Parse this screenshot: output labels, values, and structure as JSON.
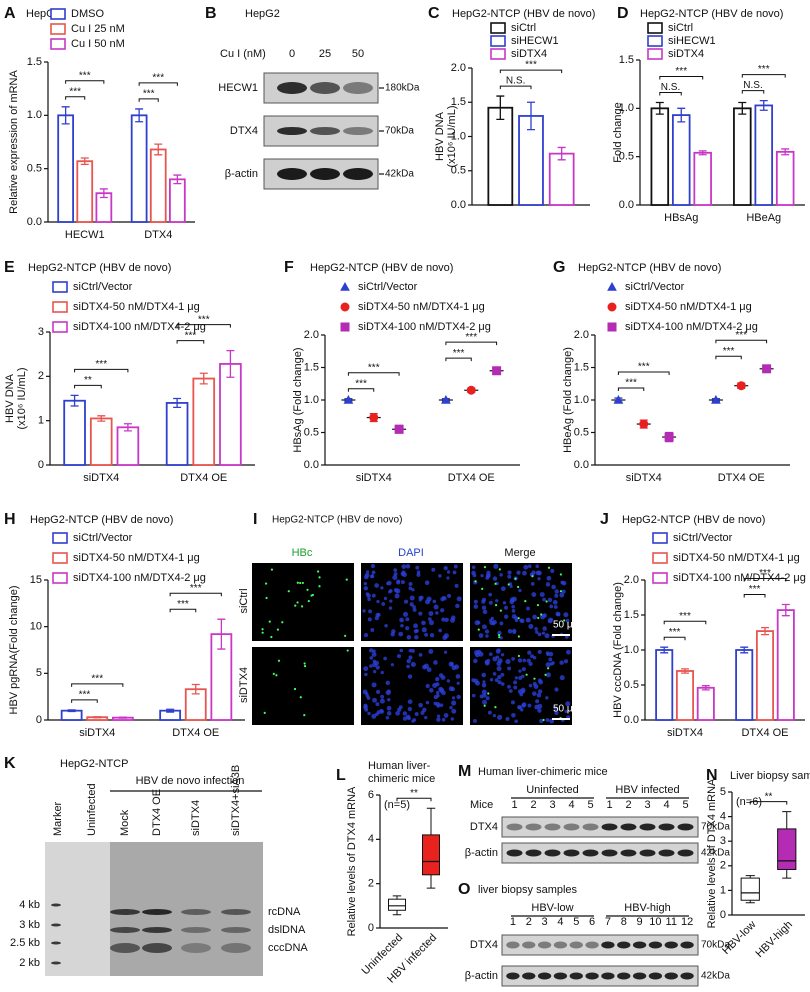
{
  "chart_data": [
    {
      "panel": "A",
      "type": "bar",
      "title": "HepG2",
      "ylabel": "Relative expression of mRNA",
      "categories": [
        "HECW1",
        "DTX4"
      ],
      "series": [
        {
          "name": "DMSO",
          "color": "#2f3fce",
          "values": [
            1.0,
            1.0
          ],
          "errors": [
            0.08,
            0.06
          ]
        },
        {
          "name": "Cu I 25 nM",
          "color": "#e8544f",
          "values": [
            0.57,
            0.68
          ],
          "errors": [
            0.03,
            0.05
          ]
        },
        {
          "name": "Cu I 50 nM",
          "color": "#c837c8",
          "values": [
            0.27,
            0.4
          ],
          "errors": [
            0.04,
            0.04
          ]
        }
      ],
      "ylim": [
        0,
        1.5
      ],
      "yticks": [
        {
          "value": 0,
          "label": "0.0"
        },
        {
          "value": 0.5,
          "label": "0.5"
        },
        {
          "value": 1,
          "label": "1.0"
        },
        {
          "value": 1.5,
          "label": "1.5"
        }
      ],
      "annotations": [
        "***",
        "***",
        "***",
        "***"
      ]
    },
    {
      "panel": "C",
      "type": "bar",
      "title": "HepG2-NTCP (HBV de novo)",
      "ylabel": [
        "HBV DNA",
        "(x10⁶ IU/mL)"
      ],
      "categories": [
        null
      ],
      "series": [
        {
          "name": "siCtrl",
          "color": "#111111",
          "values": [
            1.42
          ],
          "errors": [
            0.17
          ]
        },
        {
          "name": "siHECW1",
          "color": "#2f3fce",
          "values": [
            1.3
          ],
          "errors": [
            0.2
          ]
        },
        {
          "name": "siDTX4",
          "color": "#c837c8",
          "values": [
            0.75
          ],
          "errors": [
            0.09
          ]
        }
      ],
      "ylim": [
        0,
        2
      ],
      "yticks": [
        {
          "value": 0,
          "label": "0.0"
        },
        {
          "value": 0.5,
          "label": "0.5"
        },
        {
          "value": 1,
          "label": "1.0"
        },
        {
          "value": 1.5,
          "label": "1.5"
        },
        {
          "value": 2,
          "label": "2.0"
        }
      ],
      "annotations": [
        "N.S.",
        "***"
      ]
    },
    {
      "panel": "D",
      "type": "bar",
      "title": "HepG2-NTCP (HBV de novo)",
      "ylabel": "Fold change",
      "categories": [
        "HBsAg",
        "HBeAg"
      ],
      "series": [
        {
          "name": "siCtrl",
          "color": "#111111",
          "values": [
            1.0,
            1.0
          ],
          "errors": [
            0.06,
            0.06
          ]
        },
        {
          "name": "siHECW1",
          "color": "#2f3fce",
          "values": [
            0.93,
            1.03
          ],
          "errors": [
            0.07,
            0.05
          ]
        },
        {
          "name": "siDTX4",
          "color": "#c837c8",
          "values": [
            0.54,
            0.55
          ],
          "errors": [
            0.02,
            0.03
          ]
        }
      ],
      "ylim": [
        0,
        1.5
      ],
      "yticks": [
        {
          "value": 0,
          "label": "0.0"
        },
        {
          "value": 0.5,
          "label": "0.5"
        },
        {
          "value": 1,
          "label": "1.0"
        },
        {
          "value": 1.5,
          "label": "1.5"
        }
      ],
      "annotations": [
        "N.S.",
        "***",
        "N.S.",
        "***"
      ]
    },
    {
      "panel": "E",
      "type": "bar",
      "title": "HepG2-NTCP (HBV de novo)",
      "ylabel": [
        "HBV DNA",
        "(x10⁶ IU/mL)"
      ],
      "categories": [
        "siDTX4",
        "DTX4 OE"
      ],
      "series": [
        {
          "name": "siCtrl/Vector",
          "color": "#2f3fce",
          "values": [
            1.45,
            1.4
          ],
          "errors": [
            0.12,
            0.1
          ]
        },
        {
          "name": "siDTX4-50 nM/DTX4-1 μg",
          "color": "#e8544f",
          "values": [
            1.05,
            1.95
          ],
          "errors": [
            0.06,
            0.12
          ]
        },
        {
          "name": "siDTX4-100 nM/DTX4-2 μg",
          "color": "#c837c8",
          "values": [
            0.85,
            2.28
          ],
          "errors": [
            0.08,
            0.3
          ]
        }
      ],
      "ylim": [
        0,
        3
      ],
      "yticks": [
        0,
        1,
        2,
        3
      ],
      "annotations": [
        "**",
        "***",
        "***",
        "***"
      ]
    },
    {
      "panel": "F",
      "type": "dot",
      "title": "HepG2-NTCP (HBV de novo)",
      "ylabel": "HBsAg (Fold change)",
      "categories": [
        "siDTX4",
        "DTX4 OE"
      ],
      "series": [
        {
          "name": "siCtrl/Vector",
          "color": "#2f3fce",
          "marker": "triangle",
          "values": [
            1.0,
            1.0
          ],
          "errors": [
            0.02,
            0.02
          ]
        },
        {
          "name": "siDTX4-50 nM/DTX4-1 μg",
          "color": "#e82020",
          "marker": "circle",
          "values": [
            0.73,
            1.15
          ],
          "errors": [
            0.06,
            0.03
          ]
        },
        {
          "name": "siDTX4-100 nM/DTX4-2 μg",
          "color": "#b42bb4",
          "marker": "square",
          "values": [
            0.55,
            1.45
          ],
          "errors": [
            0.06,
            0.04
          ]
        }
      ],
      "ylim": [
        0,
        2
      ],
      "yticks": [
        {
          "value": 0,
          "label": "0.0"
        },
        {
          "value": 0.5,
          "label": "0.5"
        },
        {
          "value": 1,
          "label": "1.0"
        },
        {
          "value": 1.5,
          "label": "1.5"
        },
        {
          "value": 2,
          "label": "2.0"
        }
      ],
      "annotations": [
        "***",
        "***",
        "***",
        "***"
      ]
    },
    {
      "panel": "G",
      "type": "dot",
      "title": "HepG2-NTCP (HBV de novo)",
      "ylabel": "HBeAg (Fold change)",
      "categories": [
        "siDTX4",
        "DTX4 OE"
      ],
      "series": [
        {
          "name": "siCtrl/Vector",
          "color": "#2f3fce",
          "marker": "triangle",
          "values": [
            1.0,
            1.0
          ],
          "errors": [
            0.03,
            0.02
          ]
        },
        {
          "name": "siDTX4-50 nM/DTX4-1 μg",
          "color": "#e82020",
          "marker": "circle",
          "values": [
            0.63,
            1.22
          ],
          "errors": [
            0.06,
            0.04
          ]
        },
        {
          "name": "siDTX4-100 nM/DTX4-2 μg",
          "color": "#b42bb4",
          "marker": "square",
          "values": [
            0.43,
            1.48
          ],
          "errors": [
            0.07,
            0.04
          ]
        }
      ],
      "ylim": [
        0,
        2
      ],
      "yticks": [
        {
          "value": 0,
          "label": "0.0"
        },
        {
          "value": 0.5,
          "label": "0.5"
        },
        {
          "value": 1,
          "label": "1.0"
        },
        {
          "value": 1.5,
          "label": "1.5"
        },
        {
          "value": 2,
          "label": "2.0"
        }
      ],
      "annotations": [
        "***",
        "***",
        "***",
        "***"
      ]
    },
    {
      "panel": "H",
      "type": "bar",
      "title": "HepG2-NTCP (HBV de novo)",
      "ylabel": "HBV pgRNA(Fold change)",
      "categories": [
        "siDTX4",
        "DTX4 OE"
      ],
      "series": [
        {
          "name": "siCtrl/Vector",
          "color": "#2f3fce",
          "values": [
            1.0,
            1.0
          ],
          "errors": [
            0.08,
            0.15
          ]
        },
        {
          "name": "siDTX4-50 nM/DTX4-1 μg",
          "color": "#e8544f",
          "values": [
            0.3,
            3.3
          ],
          "errors": [
            0.05,
            0.5
          ]
        },
        {
          "name": "siDTX4-100 nM/DTX4-2 μg",
          "color": "#c837c8",
          "values": [
            0.25,
            9.2
          ],
          "errors": [
            0.05,
            1.6
          ]
        }
      ],
      "ylim": [
        0,
        15
      ],
      "yticks": [
        0,
        5,
        10,
        15
      ],
      "annotations": [
        "***",
        "***",
        "***",
        "***"
      ]
    },
    {
      "panel": "J",
      "type": "bar",
      "title": "HepG2-NTCP (HBV de novo)",
      "ylabel": "HBV cccDNA (Fold change)",
      "categories": [
        "siDTX4",
        "DTX4 OE"
      ],
      "series": [
        {
          "name": "siCtrl/Vector",
          "color": "#2f3fce",
          "values": [
            1.0,
            1.0
          ],
          "errors": [
            0.04,
            0.04
          ]
        },
        {
          "name": "siDTX4-50 nM/DTX4-1 μg",
          "color": "#e8544f",
          "values": [
            0.7,
            1.27
          ],
          "errors": [
            0.03,
            0.05
          ]
        },
        {
          "name": "siDTX4-100 nM/DTX4-2 μg",
          "color": "#c837c8",
          "values": [
            0.46,
            1.57
          ],
          "errors": [
            0.03,
            0.08
          ]
        }
      ],
      "ylim": [
        0,
        2
      ],
      "yticks": [
        {
          "value": 0,
          "label": "0.0"
        },
        {
          "value": 0.5,
          "label": "0.5"
        },
        {
          "value": 1,
          "label": "1.0"
        },
        {
          "value": 1.5,
          "label": "1.5"
        },
        {
          "value": 2,
          "label": "2.0"
        }
      ],
      "annotations": [
        "***",
        "***",
        "***",
        "***"
      ]
    },
    {
      "panel": "L",
      "type": "box",
      "title": [
        "Human liver-",
        "chimeric mice"
      ],
      "ylabel": "Relative levels of DTX4 mRNA",
      "note": "(n=5)",
      "categories": [
        "Uninfected",
        "HBV infected"
      ],
      "boxes": [
        {
          "color": "#ffffff",
          "min": 0.6,
          "q1": 0.8,
          "median": 1.0,
          "q3": 1.3,
          "max": 1.45
        },
        {
          "color": "#e8221c",
          "min": 1.8,
          "q1": 2.4,
          "median": 3.0,
          "q3": 4.2,
          "max": 5.4
        }
      ],
      "ylim": [
        0,
        6
      ],
      "yticks": [
        0,
        2,
        4,
        6
      ],
      "annotations": [
        "**"
      ]
    },
    {
      "panel": "N",
      "type": "box",
      "title": "Liver biopsy samples",
      "ylabel": "Relative levels of DTX4 mRNA",
      "note": "(n=6)",
      "categories": [
        "HBV-low",
        "HBV-high"
      ],
      "boxes": [
        {
          "color": "#ffffff",
          "min": 0.5,
          "q1": 0.6,
          "median": 0.9,
          "q3": 1.5,
          "max": 1.6
        },
        {
          "color": "#b42bb4",
          "min": 1.5,
          "q1": 1.85,
          "median": 2.2,
          "q3": 3.5,
          "max": 4.2
        }
      ],
      "ylim": [
        0,
        5
      ],
      "yticks": [
        0,
        1,
        2,
        3,
        4,
        5
      ],
      "annotations": [
        "**"
      ]
    }
  ],
  "blot_B": {
    "panel": "B",
    "title": "HepG2",
    "lane_header": "Cu I (nM)",
    "lanes": [
      "0",
      "25",
      "50"
    ],
    "rows": [
      "HECW1",
      "DTX4",
      "β-actin"
    ],
    "sizes": [
      "180kDa",
      "70kDa",
      "42kDa"
    ]
  },
  "image_I": {
    "panel": "I",
    "title": "HepG2-NTCP (HBV de novo)",
    "columns": [
      "HBc",
      "DAPI",
      "Merge"
    ],
    "rows": [
      "siCtrl",
      "siDTX4"
    ],
    "scale_bar": "50 μm"
  },
  "blot_K": {
    "panel": "K",
    "title": "HepG2-NTCP",
    "group": "HBV de novo infection",
    "lanes": [
      "Marker",
      "Uninfected",
      "Mock",
      "DTX4 OE",
      "siDTX4",
      "siDTX4+siA3B"
    ],
    "ladder": [
      "4 kb",
      "3 kb",
      "2.5 kb",
      "2 kb"
    ],
    "bands": [
      "rcDNA",
      "dslDNA",
      "cccDNA"
    ]
  },
  "blot_M": {
    "panel": "M",
    "title": "Human liver-chimeric mice",
    "lane_header": "Mice",
    "groups": [
      "Uninfected",
      "HBV infected"
    ],
    "lanes": [
      "1",
      "2",
      "3",
      "4",
      "5",
      "1",
      "2",
      "3",
      "4",
      "5"
    ],
    "rows": [
      "DTX4",
      "β-actin"
    ],
    "sizes": [
      "70kDa",
      "42kDa"
    ]
  },
  "blot_O": {
    "panel": "O",
    "title": "liver biopsy samples",
    "groups": [
      "HBV-low",
      "HBV-high"
    ],
    "lanes": [
      "1",
      "2",
      "3",
      "4",
      "5",
      "6",
      "7",
      "8",
      "9",
      "10",
      "11",
      "12"
    ],
    "rows": [
      "DTX4",
      "β-actin"
    ],
    "sizes": [
      "70kDa",
      "42kDa"
    ]
  }
}
